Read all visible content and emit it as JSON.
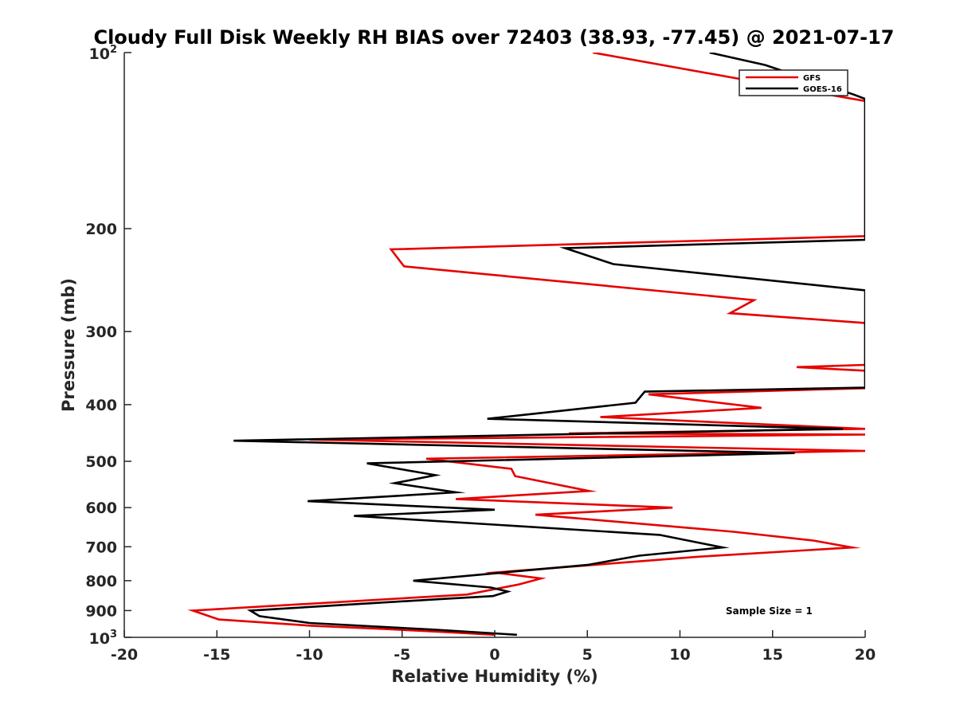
{
  "chart_data": {
    "type": "line",
    "title": "Cloudy Full Disk Weekly RH BIAS over 72403 (38.93, -77.45) @ 2021-07-17",
    "xlabel": "Relative Humidity (%)",
    "ylabel": "Pressure (mb)",
    "xlim": [
      -20,
      20
    ],
    "ylim": [
      100,
      1000
    ],
    "y_scale": "log",
    "y_reversed": true,
    "grid": false,
    "legend_position": "top-right",
    "annotation": "Sample Size = 1",
    "x_ticks": [
      "-20",
      "-15",
      "-10",
      "-5",
      "0",
      "5",
      "10",
      "15",
      "20"
    ],
    "y_ticks": [
      {
        "value": 100,
        "base": "10",
        "exp": "2"
      },
      {
        "value": 200,
        "label": "200"
      },
      {
        "value": 300,
        "label": "300"
      },
      {
        "value": 400,
        "label": "400"
      },
      {
        "value": 500,
        "label": "500"
      },
      {
        "value": 600,
        "label": "600"
      },
      {
        "value": 700,
        "label": "700"
      },
      {
        "value": 800,
        "label": "800"
      },
      {
        "value": 900,
        "label": "900"
      },
      {
        "value": 1000,
        "base": "10",
        "exp": "3"
      }
    ],
    "series": [
      {
        "name": "GFS",
        "color": "#e60000",
        "points": [
          [
            5.3,
            100
          ],
          [
            16,
            115
          ],
          [
            20,
            121
          ],
          [
            20,
            206
          ],
          [
            -5.6,
            217
          ],
          [
            -4.9,
            232
          ],
          [
            14,
            265
          ],
          [
            12.7,
            279
          ],
          [
            20,
            290
          ],
          [
            20,
            342
          ],
          [
            16.3,
            345
          ],
          [
            20,
            350
          ],
          [
            20,
            375
          ],
          [
            8.3,
            384
          ],
          [
            14.4,
            405
          ],
          [
            5.7,
            420
          ],
          [
            20,
            440
          ],
          [
            4,
            448
          ],
          [
            20,
            450
          ],
          [
            -10,
            459
          ],
          [
            20,
            480
          ],
          [
            -3.7,
            495
          ],
          [
            0.9,
            515
          ],
          [
            1.1,
            530
          ],
          [
            5.1,
            562
          ],
          [
            -2.1,
            580
          ],
          [
            9.6,
            600
          ],
          [
            2.2,
            617
          ],
          [
            12.9,
            660
          ],
          [
            17.2,
            683
          ],
          [
            19.3,
            702
          ],
          [
            11,
            728
          ],
          [
            0,
            775
          ],
          [
            2.5,
            793
          ],
          [
            1.3,
            812
          ],
          [
            -1.5,
            845
          ],
          [
            -16.3,
            900
          ],
          [
            -14.9,
            932
          ],
          [
            -10,
            955
          ],
          [
            -5.9,
            968
          ],
          [
            -2.5,
            980
          ],
          [
            0,
            990
          ]
        ]
      },
      {
        "name": "GOES-16",
        "color": "#000000",
        "points": [
          [
            11.6,
            100
          ],
          [
            14.6,
            105
          ],
          [
            19.4,
            118
          ],
          [
            20,
            120
          ],
          [
            20,
            209
          ],
          [
            3.8,
            216
          ],
          [
            6.4,
            230
          ],
          [
            20,
            255
          ],
          [
            20,
            374
          ],
          [
            8.1,
            380
          ],
          [
            7.6,
            397
          ],
          [
            -0.4,
            423
          ],
          [
            18.8,
            440
          ],
          [
            -14.1,
            461
          ],
          [
            16.2,
            484
          ],
          [
            -6.9,
            504
          ],
          [
            -3.2,
            528
          ],
          [
            -5.4,
            545
          ],
          [
            -2.1,
            565
          ],
          [
            -10.1,
            585
          ],
          [
            0,
            605
          ],
          [
            -7.6,
            620
          ],
          [
            8.9,
            668
          ],
          [
            12.3,
            702
          ],
          [
            7.8,
            725
          ],
          [
            5,
            752
          ],
          [
            -4.4,
            800
          ],
          [
            -0.2,
            822
          ],
          [
            0.7,
            835
          ],
          [
            -0.1,
            850
          ],
          [
            -2.9,
            860
          ],
          [
            -13.2,
            900
          ],
          [
            -12.7,
            920
          ],
          [
            -10,
            945
          ],
          [
            -3.3,
            970
          ],
          [
            1.2,
            990
          ]
        ]
      }
    ]
  }
}
